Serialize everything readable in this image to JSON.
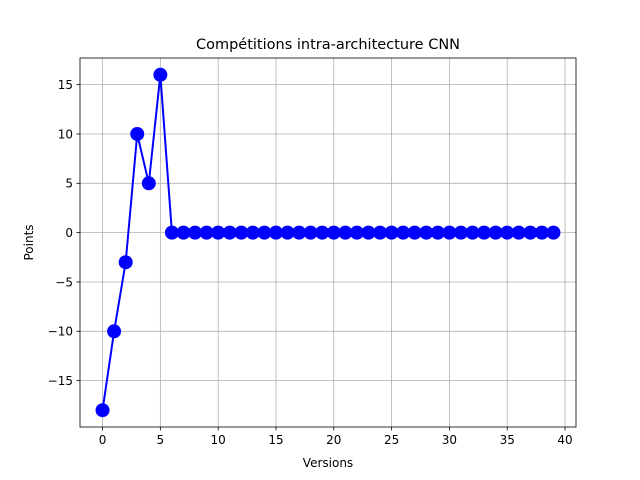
{
  "chart_data": {
    "type": "line",
    "title": "Compétitions intra-architecture CNN",
    "xlabel": "Versions",
    "ylabel": "Points",
    "xlim": [
      -1.95,
      40.95
    ],
    "ylim": [
      -19.7,
      17.7
    ],
    "xticks": [
      0,
      5,
      10,
      15,
      20,
      25,
      30,
      35,
      40
    ],
    "yticks": [
      -15,
      -10,
      -5,
      0,
      5,
      10,
      15
    ],
    "xtick_labels": [
      "0",
      "5",
      "10",
      "15",
      "20",
      "25",
      "30",
      "35",
      "40"
    ],
    "ytick_labels": [
      "−15",
      "−10",
      "−5",
      "0",
      "5",
      "10",
      "15"
    ],
    "grid": true,
    "series": [
      {
        "color": "#0000ff",
        "marker": "circle",
        "x": [
          0,
          1,
          2,
          3,
          4,
          5,
          6,
          7,
          8,
          9,
          10,
          11,
          12,
          13,
          14,
          15,
          16,
          17,
          18,
          19,
          20,
          21,
          22,
          23,
          24,
          25,
          26,
          27,
          28,
          29,
          30,
          31,
          32,
          33,
          34,
          35,
          36,
          37,
          38,
          39
        ],
        "values": [
          -18,
          -10,
          -3,
          10,
          5,
          16,
          0,
          0,
          0,
          0,
          0,
          0,
          0,
          0,
          0,
          0,
          0,
          0,
          0,
          0,
          0,
          0,
          0,
          0,
          0,
          0,
          0,
          0,
          0,
          0,
          0,
          0,
          0,
          0,
          0,
          0,
          0,
          0,
          0,
          0
        ]
      }
    ]
  }
}
